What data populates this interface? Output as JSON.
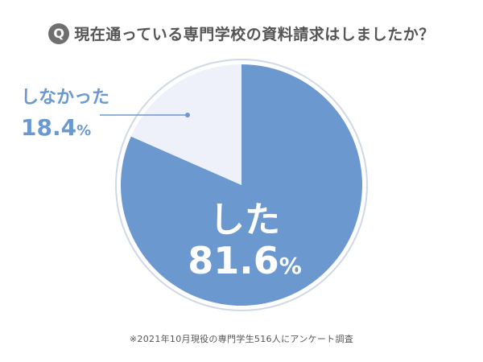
{
  "header": {
    "q_badge": "Q",
    "title": "現在通っている専門学校の資料請求はしましたか？"
  },
  "footnote": "※2021年10月現役の専門学生516人にアンケート調査",
  "colors": {
    "major": "#6b99cf",
    "minor": "#eef1f9",
    "ring": "#cfd8e6",
    "label_minor": "#6b99cf",
    "label_major": "#ffffff"
  },
  "chart_data": {
    "type": "pie",
    "title": "現在通っている専門学校の資料請求はしましたか？",
    "slices": [
      {
        "label": "した",
        "value": 81.6,
        "display": "81.6",
        "unit": "%",
        "color": "#6b99cf"
      },
      {
        "label": "しなかった",
        "value": 18.4,
        "display": "18.4",
        "unit": "%",
        "color": "#eef1f9"
      }
    ],
    "start_angle_deg": 0,
    "direction": "clockwise"
  }
}
